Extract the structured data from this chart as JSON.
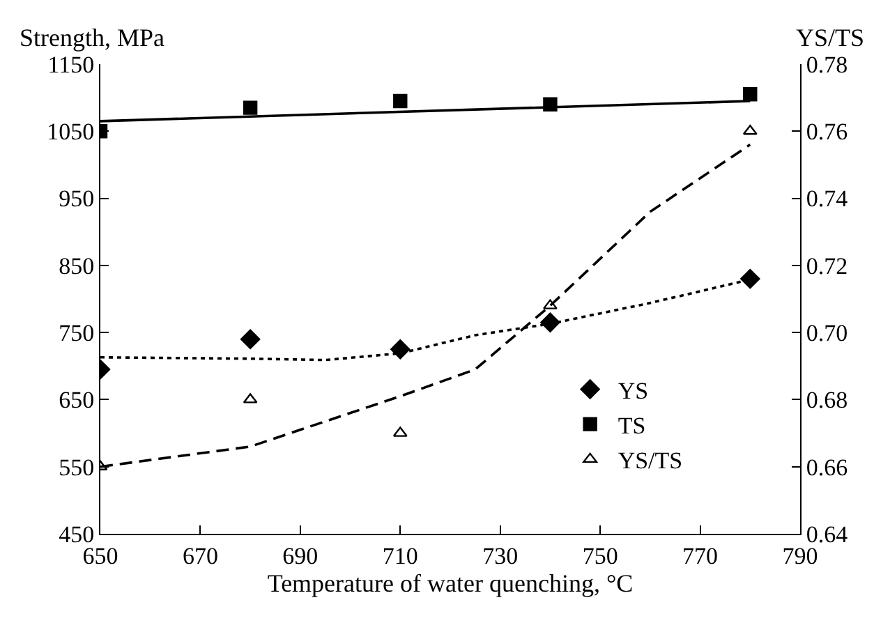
{
  "chart_data": {
    "type": "scatter",
    "xlabel": "Temperature of water quenching, °C",
    "ylabel": "Strength, MPa",
    "y2label": "YS/TS",
    "xlim": [
      650,
      790
    ],
    "xticks": [
      650,
      670,
      690,
      710,
      730,
      750,
      770,
      790
    ],
    "ylim": [
      450,
      1150
    ],
    "yticks": [
      450,
      550,
      650,
      750,
      850,
      950,
      1050,
      1150
    ],
    "y2lim": [
      0.64,
      0.78
    ],
    "y2ticks": [
      {
        "value": 0.64,
        "label": "0.64"
      },
      {
        "value": 0.66,
        "label": "0.66"
      },
      {
        "value": 0.68,
        "label": "0.68"
      },
      {
        "value": 0.7,
        "label": "0.70"
      },
      {
        "value": 0.72,
        "label": "0.72"
      },
      {
        "value": 0.74,
        "label": "0.74"
      },
      {
        "value": 0.76,
        "label": "0.76"
      },
      {
        "value": 0.78,
        "label": "0.78"
      }
    ],
    "x": [
      650,
      680,
      710,
      740,
      780
    ],
    "legend": "bottom right",
    "series": [
      {
        "name": "YS",
        "color": "#000000",
        "marker": "diamond",
        "values": [
          695,
          740,
          725,
          765,
          830
        ]
      },
      {
        "name": "TS",
        "color": "#000000",
        "marker": "square",
        "values": [
          1050,
          1085,
          1095,
          1090,
          1105
        ]
      },
      {
        "name": "YS/TS",
        "color": "#000000",
        "marker": "triangle",
        "axis": "y2",
        "values": [
          0.66,
          0.68,
          0.67,
          0.708,
          0.76
        ]
      },
      {
        "type": "line",
        "color": "#000000",
        "line_style": "solid",
        "x": [
          650,
          780
        ],
        "values": [
          1065,
          1095
        ]
      },
      {
        "type": "line",
        "color": "#000000",
        "line_style": "dotted",
        "x": [
          650,
          680,
          695,
          710,
          725,
          740,
          760,
          780
        ],
        "values": [
          713,
          711,
          709,
          719,
          746,
          763,
          794,
          829
        ]
      },
      {
        "type": "line",
        "color": "#000000",
        "line_style": "dashed",
        "axis": "y2",
        "x": [
          650,
          680,
          710,
          725,
          740,
          760,
          780
        ],
        "values": [
          0.66,
          0.666,
          0.681,
          0.689,
          0.708,
          0.736,
          0.756
        ]
      }
    ]
  }
}
